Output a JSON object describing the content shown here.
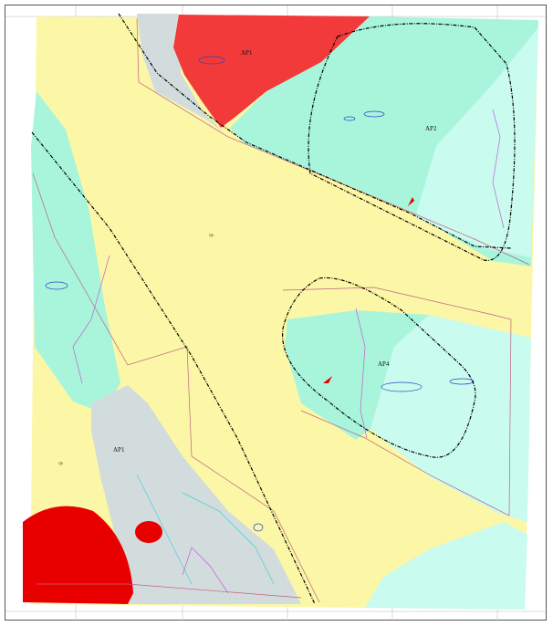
{
  "map": {
    "colors": {
      "quaternary": "#fbf7a6",
      "aqua_unit": "#a8f5dc",
      "light_cyan_unit": "#c9fbef",
      "grey_unit": "#d3dcdc",
      "red_intrusion": "#f23a3a",
      "boundary_dashdot": "#000000",
      "pink_lines": "#c06080",
      "contours_blue": "#3040c0",
      "contours_purple": "#c060d0"
    },
    "labels": {
      "ap1_top": "AP1",
      "ap2": "AP2",
      "ap4": "AP4",
      "ap1_bottom": "AP1",
      "qh_center": "Qh",
      "qh_left": "Qh"
    }
  }
}
